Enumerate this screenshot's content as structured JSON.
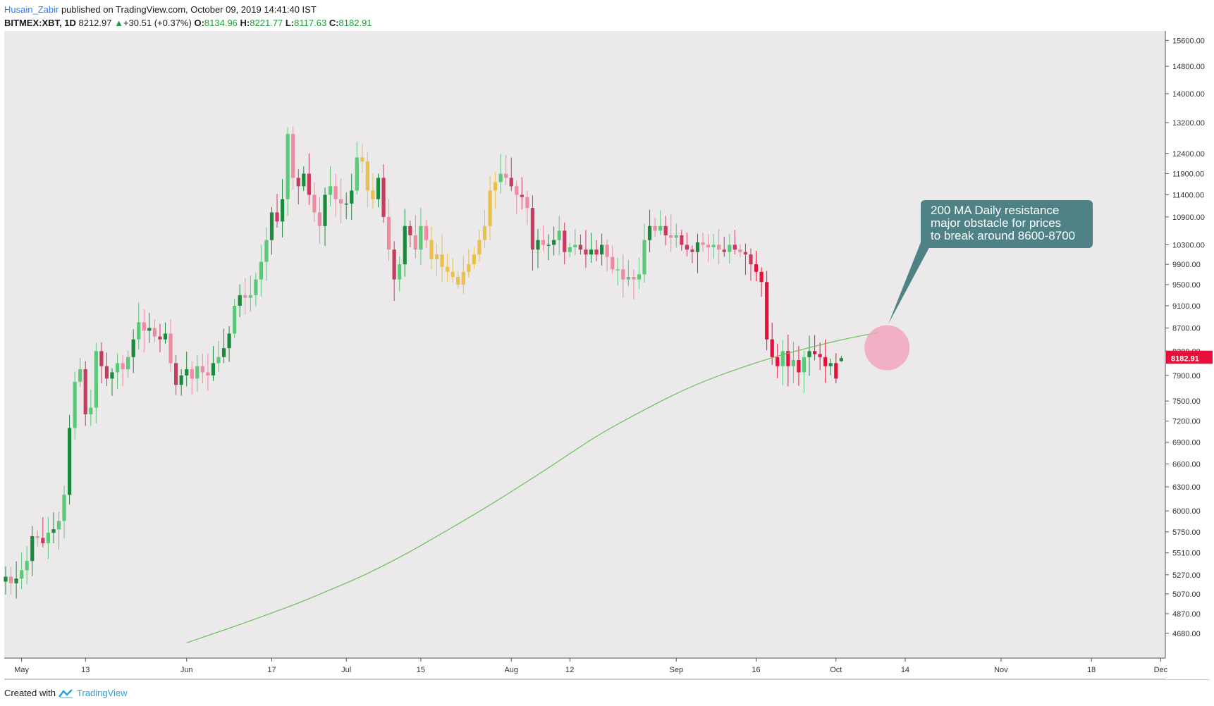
{
  "header": {
    "author": "Husain_Zabir",
    "published": "published on TradingView.com, October 09, 2019 14:41:40 IST",
    "symbol": "BITMEX:XBT, 1D",
    "last": "8212.97",
    "change_arrow": "▲",
    "change": "+30.51 (+0.37%)",
    "open_label": "O:",
    "open": "8134.96",
    "high_label": "H:",
    "high": "8221.77",
    "low_label": "L:",
    "low": "8117.63",
    "close_label": "C:",
    "close": "8182.91"
  },
  "footer": {
    "created": "Created with",
    "brand": "TradingView"
  },
  "callout": {
    "line1": "200 MA Daily resistance",
    "line2": "major obstacle for prices",
    "line3": "to break around 8600-8700"
  },
  "colors": {
    "bull": "#1a8a3c",
    "bull_light": "#5dc87a",
    "bear": "#e8103a",
    "bear_light": "#f08aa0",
    "yellow": "#e8c04a",
    "ma": "#6cbf5a",
    "background": "#ebe9ea",
    "callout": "#4f8285",
    "highlight": "#f4a0b8"
  },
  "chart_data": {
    "type": "candlestick",
    "symbol": "BITMEX:XBT",
    "timeframe": "1D",
    "scale": "log",
    "ylim": [
      4450,
      15900
    ],
    "y_ticks": [
      "15600.00",
      "14800.00",
      "14000.00",
      "13200.00",
      "12400.00",
      "11900.00",
      "11400.00",
      "10900.00",
      "10300.00",
      "9900.00",
      "9500.00",
      "9100.00",
      "8700.00",
      "8300.00",
      "7900.00",
      "7500.00",
      "7200.00",
      "6900.00",
      "6600.00",
      "6300.00",
      "6000.00",
      "5750.00",
      "5510.00",
      "5270.00",
      "5070.00",
      "4870.00",
      "4680.00"
    ],
    "x_ticks": [
      {
        "label": "May",
        "date": "2019-05-01"
      },
      {
        "label": "13",
        "date": "2019-05-13"
      },
      {
        "label": "Jun",
        "date": "2019-06-01"
      },
      {
        "label": "17",
        "date": "2019-06-17"
      },
      {
        "label": "Jul",
        "date": "2019-07-01"
      },
      {
        "label": "15",
        "date": "2019-07-15"
      },
      {
        "label": "Aug",
        "date": "2019-08-01"
      },
      {
        "label": "12",
        "date": "2019-08-12"
      },
      {
        "label": "Sep",
        "date": "2019-09-01"
      },
      {
        "label": "16",
        "date": "2019-09-16"
      },
      {
        "label": "Oct",
        "date": "2019-10-01"
      },
      {
        "label": "14",
        "date": "2019-10-14"
      },
      {
        "label": "Nov",
        "date": "2019-11-01"
      },
      {
        "label": "18",
        "date": "2019-11-18"
      },
      {
        "label": "Dec",
        "date": "2019-12-01"
      }
    ],
    "price_labels": [
      {
        "value": "8212.97",
        "color": "#e8103a"
      },
      {
        "value": "8182.91",
        "color": "#e8103a"
      }
    ],
    "close_series": {
      "start": "2019-04-28",
      "values": [
        5250,
        5180,
        5230,
        5320,
        5420,
        5700,
        5680,
        5620,
        5740,
        5780,
        5880,
        6200,
        7100,
        7800,
        8000,
        7300,
        7400,
        8300,
        8050,
        7850,
        7950,
        8100,
        8000,
        8200,
        8500,
        8800,
        8650,
        8700,
        8550,
        8500,
        8600,
        8100,
        7750,
        7900,
        8000,
        7850,
        8050,
        7950,
        7900,
        8100,
        8200,
        8350,
        8600,
        9100,
        9300,
        9250,
        9300,
        9600,
        9950,
        10400,
        11000,
        10800,
        11300,
        12900,
        11800,
        11600,
        11900,
        11400,
        11000,
        10700,
        11400,
        11600,
        11300,
        11200,
        11200,
        11500,
        12300,
        12200,
        11500,
        11300,
        11800,
        10900,
        10200,
        9600,
        9900,
        10700,
        10500,
        10200,
        10700,
        10400,
        10000,
        10100,
        9850,
        9750,
        9650,
        9500,
        9750,
        9900,
        10100,
        10400,
        10700,
        11500,
        11700,
        11900,
        11800,
        11600,
        11400,
        11350,
        11100,
        10200,
        10400,
        10300,
        10300,
        10400,
        10600,
        10150,
        10250,
        10300,
        10200,
        10100,
        10200,
        10100,
        10300,
        10050,
        9800,
        9800,
        9600,
        9650,
        9600,
        9700,
        10400,
        10700,
        10600,
        10700,
        10500,
        10450,
        10500,
        10300,
        10200,
        10150,
        10350,
        10300,
        10250,
        10300,
        10200,
        10150,
        10300,
        10200,
        10150,
        10100,
        9900,
        9750,
        9550,
        8500,
        8200,
        8050,
        8300,
        8050,
        8150,
        7950,
        8200,
        8300,
        8250,
        8200,
        8050,
        8100,
        7850,
        8182.91
      ]
    },
    "ma200": {
      "name": "200 MA",
      "start": "2019-06-01",
      "values": [
        4590,
        4680,
        4770,
        4870,
        4970,
        5090,
        5210,
        5350,
        5510,
        5690,
        5880,
        6080,
        6300,
        6530,
        6780,
        7030,
        7250,
        7470,
        7680,
        7860,
        8020,
        8170,
        8300,
        8420,
        8530,
        8620
      ]
    },
    "annotations": [
      {
        "text": "200 MA Daily resistance major obstacle for prices to break around 8600-8700",
        "target_date": "2019-10-09",
        "target_value": 8600
      }
    ]
  }
}
